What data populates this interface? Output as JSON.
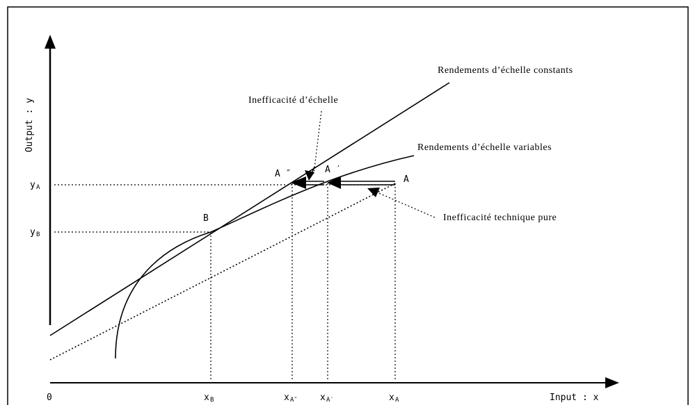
{
  "axes": {
    "x_title": "Input : x",
    "y_title": "Output : y",
    "origin": "0"
  },
  "points": {
    "A": "A",
    "A_prime": "A ′",
    "A_double": "A ″",
    "B": "B"
  },
  "y_ticks": {
    "yA": {
      "main": "y",
      "sub": "A"
    },
    "yB": {
      "main": "y",
      "sub": "B"
    }
  },
  "x_ticks": {
    "xB": {
      "main": "x",
      "sub": "B"
    },
    "xA2": {
      "main": "x",
      "sub": "A″"
    },
    "xA1": {
      "main": "x",
      "sub": "A′"
    },
    "xA": {
      "main": "x",
      "sub": "A"
    }
  },
  "annotations": {
    "crs": "Rendements d’échelle constants",
    "vrs": "Rendements d’échelle variables",
    "scale_ineff": "Inefficacité d’échelle",
    "tech_ineff": "Inefficacité technique pure"
  }
}
